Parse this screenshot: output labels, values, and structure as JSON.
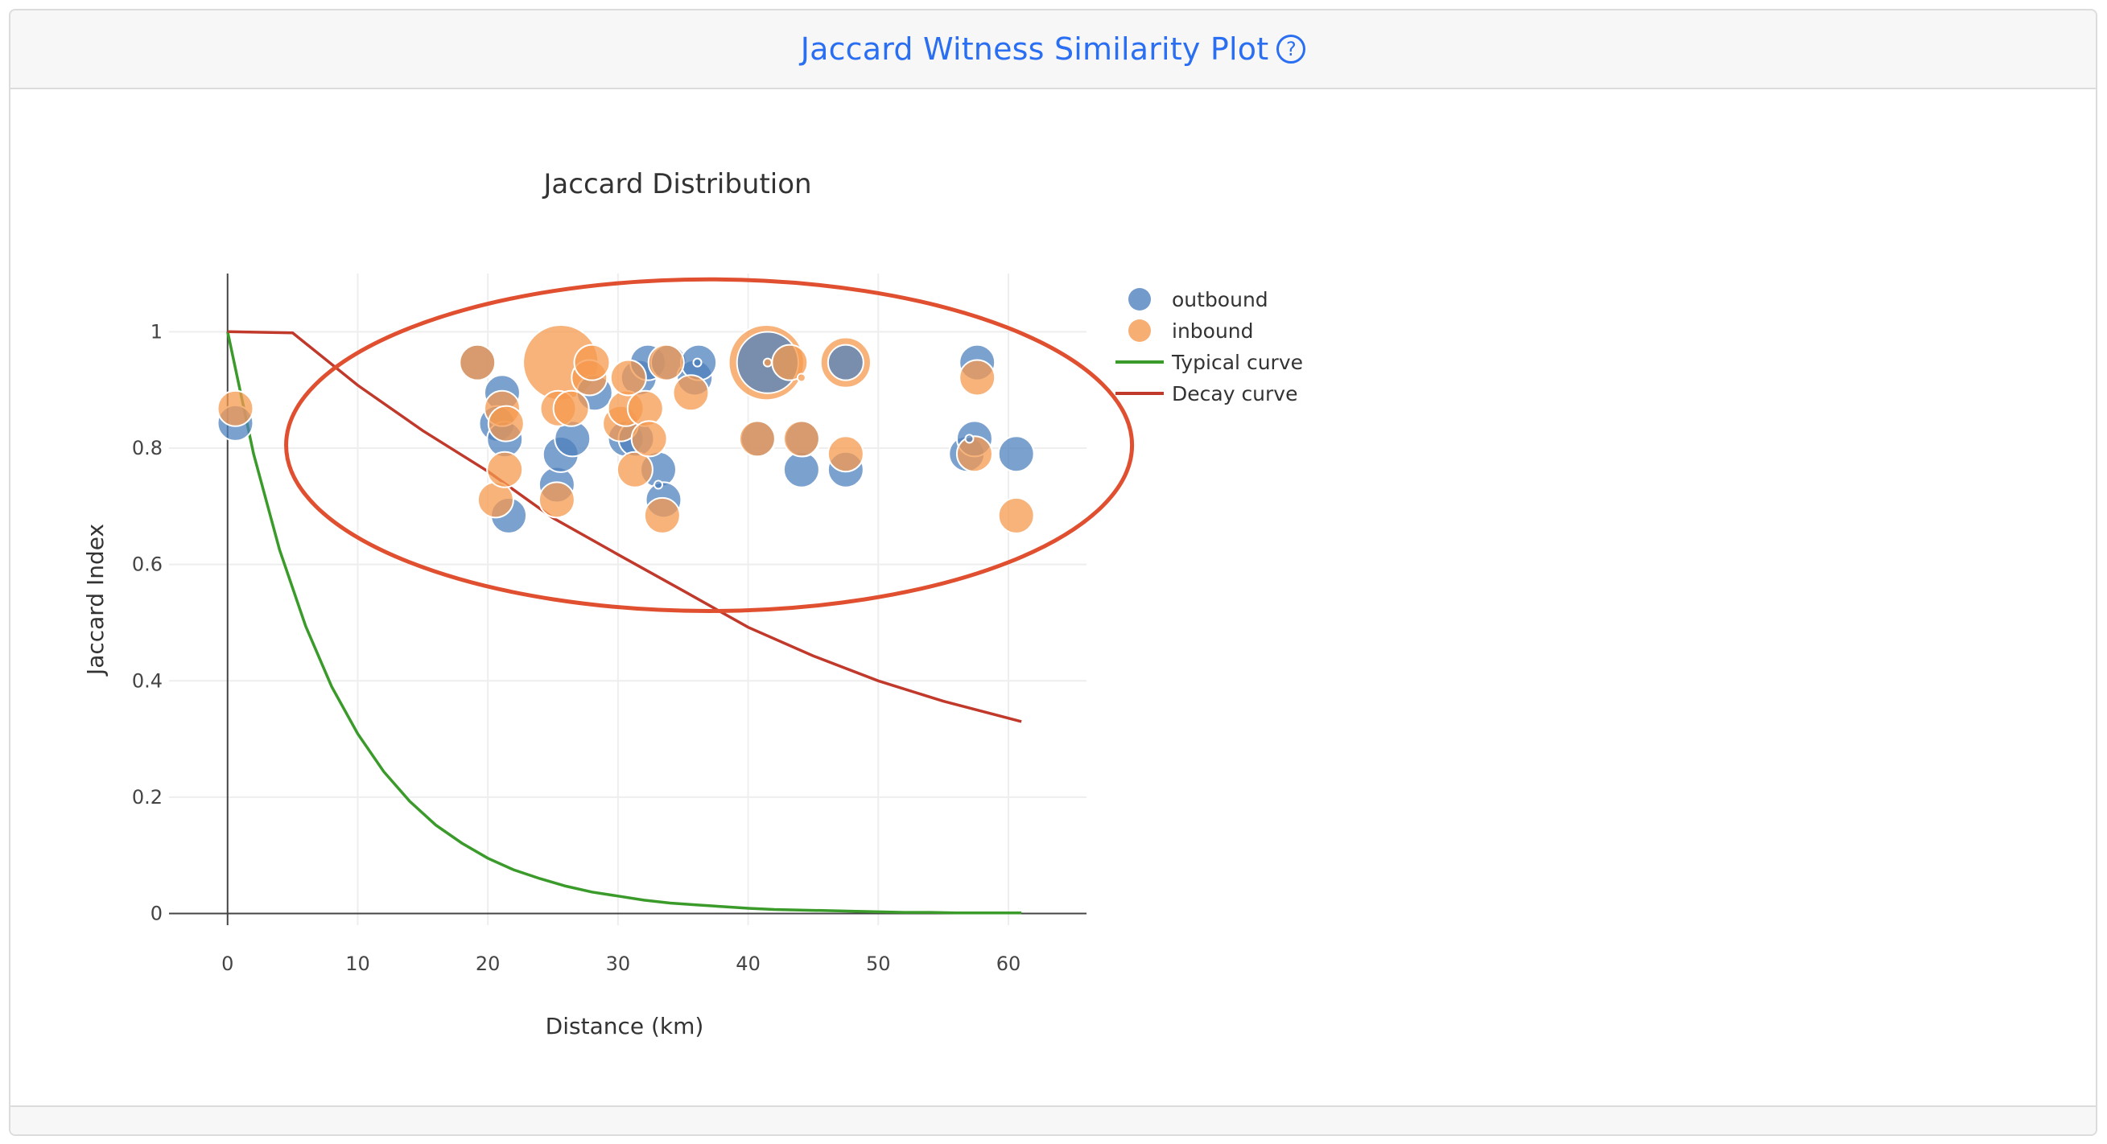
{
  "header": {
    "title": "Jaccard Witness Similarity Plot",
    "help_icon": "question-circle-icon"
  },
  "chart_data": {
    "type": "scatter",
    "title": "Jaccard Distribution",
    "xlabel": "Distance (km)",
    "ylabel": "Jaccard Index",
    "xlim": [
      -4.5,
      66
    ],
    "ylim": [
      -0.02,
      1.1
    ],
    "x_ticks": [
      0,
      10,
      20,
      30,
      40,
      50,
      60
    ],
    "x_tick_labels": [
      "0",
      "10",
      "20",
      "30",
      "40",
      "50",
      "60"
    ],
    "y_ticks": [
      0,
      0.2,
      0.4,
      0.6,
      0.8,
      1
    ],
    "y_tick_labels": [
      "0",
      "0.2",
      "0.4",
      "0.6",
      "0.8",
      "1"
    ],
    "grid": true,
    "legend_position": "right",
    "series": [
      {
        "name": "outbound",
        "mode": "markers",
        "color": "#4f81bd",
        "points": [
          {
            "x": 0.6,
            "y": 0.843,
            "size": 1
          },
          {
            "x": 19.2,
            "y": 0.947,
            "size": 1
          },
          {
            "x": 21.1,
            "y": 0.895,
            "size": 1
          },
          {
            "x": 20.7,
            "y": 0.842,
            "size": 1
          },
          {
            "x": 21.3,
            "y": 0.815,
            "size": 1
          },
          {
            "x": 21.6,
            "y": 0.684,
            "size": 1
          },
          {
            "x": 25.3,
            "y": 0.737,
            "size": 1
          },
          {
            "x": 25.6,
            "y": 0.789,
            "size": 1
          },
          {
            "x": 26.5,
            "y": 0.816,
            "size": 1
          },
          {
            "x": 28.2,
            "y": 0.895,
            "size": 1
          },
          {
            "x": 30.6,
            "y": 0.816,
            "size": 1
          },
          {
            "x": 31.6,
            "y": 0.921,
            "size": 1
          },
          {
            "x": 31.4,
            "y": 0.816,
            "size": 1
          },
          {
            "x": 32.3,
            "y": 0.947,
            "size": 1
          },
          {
            "x": 33.1,
            "y": 0.763,
            "size": 1
          },
          {
            "x": 33.5,
            "y": 0.711,
            "size": 1
          },
          {
            "x": 33.9,
            "y": 0.947,
            "size": 1
          },
          {
            "x": 35.9,
            "y": 0.921,
            "size": 1
          },
          {
            "x": 36.2,
            "y": 0.947,
            "size": 1
          },
          {
            "x": 40.8,
            "y": 0.816,
            "size": 1
          },
          {
            "x": 44.1,
            "y": 0.763,
            "size": 1
          },
          {
            "x": 44.2,
            "y": 0.816,
            "size": 1
          },
          {
            "x": 47.5,
            "y": 0.763,
            "size": 1
          },
          {
            "x": 47.5,
            "y": 0.947,
            "size": 1
          },
          {
            "x": 56.8,
            "y": 0.79,
            "size": 1
          },
          {
            "x": 57.4,
            "y": 0.816,
            "size": 1
          },
          {
            "x": 57.6,
            "y": 0.947,
            "size": 1
          },
          {
            "x": 60.6,
            "y": 0.79,
            "size": 1
          },
          {
            "x": 41.5,
            "y": 0.947,
            "size": 3
          },
          {
            "x": 36.1,
            "y": 0.947,
            "size": 0.2
          },
          {
            "x": 57.0,
            "y": 0.816,
            "size": 0.2
          },
          {
            "x": 33.1,
            "y": 0.737,
            "size": 0.2
          }
        ]
      },
      {
        "name": "inbound",
        "mode": "markers",
        "color": "#f59a4f",
        "points": [
          {
            "x": 0.6,
            "y": 0.868,
            "size": 1
          },
          {
            "x": 19.2,
            "y": 0.947,
            "size": 1
          },
          {
            "x": 20.6,
            "y": 0.711,
            "size": 1
          },
          {
            "x": 21.1,
            "y": 0.868,
            "size": 1
          },
          {
            "x": 21.4,
            "y": 0.842,
            "size": 1
          },
          {
            "x": 21.3,
            "y": 0.763,
            "size": 1
          },
          {
            "x": 25.3,
            "y": 0.711,
            "size": 1
          },
          {
            "x": 25.4,
            "y": 0.868,
            "size": 1
          },
          {
            "x": 25.6,
            "y": 0.947,
            "size": 4.5
          },
          {
            "x": 26.4,
            "y": 0.868,
            "size": 1
          },
          {
            "x": 27.8,
            "y": 0.921,
            "size": 1
          },
          {
            "x": 28.0,
            "y": 0.947,
            "size": 1
          },
          {
            "x": 30.2,
            "y": 0.842,
            "size": 1
          },
          {
            "x": 30.6,
            "y": 0.868,
            "size": 1
          },
          {
            "x": 30.8,
            "y": 0.921,
            "size": 1
          },
          {
            "x": 31.3,
            "y": 0.763,
            "size": 1
          },
          {
            "x": 32.1,
            "y": 0.868,
            "size": 1
          },
          {
            "x": 32.4,
            "y": 0.816,
            "size": 1
          },
          {
            "x": 33.4,
            "y": 0.684,
            "size": 1
          },
          {
            "x": 33.7,
            "y": 0.947,
            "size": 1
          },
          {
            "x": 35.6,
            "y": 0.895,
            "size": 1
          },
          {
            "x": 40.7,
            "y": 0.816,
            "size": 1
          },
          {
            "x": 41.4,
            "y": 0.947,
            "size": 4.5
          },
          {
            "x": 43.2,
            "y": 0.947,
            "size": 1
          },
          {
            "x": 44.1,
            "y": 0.816,
            "size": 1
          },
          {
            "x": 47.5,
            "y": 0.79,
            "size": 1
          },
          {
            "x": 47.5,
            "y": 0.947,
            "size": 2
          },
          {
            "x": 57.4,
            "y": 0.79,
            "size": 1
          },
          {
            "x": 57.6,
            "y": 0.921,
            "size": 1
          },
          {
            "x": 60.6,
            "y": 0.684,
            "size": 1
          },
          {
            "x": 41.5,
            "y": 0.947,
            "size": 0.2
          },
          {
            "x": 44.1,
            "y": 0.921,
            "size": 0.2
          }
        ]
      },
      {
        "name": "Typical curve",
        "mode": "lines",
        "color": "#3a9a2a",
        "x": [
          0,
          2,
          4,
          6,
          8,
          10,
          12,
          14,
          16,
          18,
          20,
          22,
          24,
          26,
          28,
          30,
          32,
          34,
          36,
          38,
          40,
          42,
          44,
          46,
          48,
          50,
          52,
          54,
          56,
          58,
          60,
          61
        ],
        "y": [
          1.0,
          0.79,
          0.625,
          0.494,
          0.39,
          0.309,
          0.244,
          0.193,
          0.152,
          0.121,
          0.095,
          0.075,
          0.06,
          0.047,
          0.037,
          0.03,
          0.023,
          0.018,
          0.015,
          0.012,
          0.009,
          0.007,
          0.006,
          0.005,
          0.004,
          0.003,
          0.002,
          0.002,
          0.001,
          0.001,
          0.001,
          0.001
        ]
      },
      {
        "name": "Decay curve",
        "mode": "lines",
        "color": "#c0392b",
        "x": [
          0,
          5,
          10,
          15,
          20,
          25,
          30,
          35,
          40,
          45,
          50,
          55,
          61
        ],
        "y": [
          1.0,
          0.998,
          0.908,
          0.83,
          0.76,
          0.68,
          0.617,
          0.555,
          0.492,
          0.443,
          0.4,
          0.365,
          0.33
        ]
      }
    ],
    "annotations": [
      {
        "type": "ellipse",
        "cx": 37,
        "cy": 0.805,
        "rx": 32.5,
        "ry": 0.285,
        "color": "#e05030"
      }
    ]
  }
}
